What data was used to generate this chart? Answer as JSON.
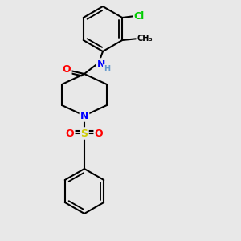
{
  "background_color": "#e8e8e8",
  "bond_color": "#000000",
  "atom_colors": {
    "N": "#0000ff",
    "O": "#ff0000",
    "S": "#cccc00",
    "Cl": "#00cc00",
    "C": "#000000",
    "H": "#6699cc"
  },
  "figsize": [
    3.0,
    3.0
  ],
  "dpi": 100
}
